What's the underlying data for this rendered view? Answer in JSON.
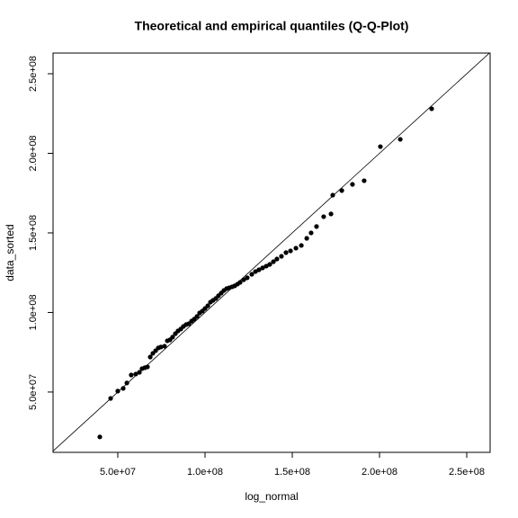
{
  "chart_data": {
    "type": "scatter",
    "title": "Theoretical and empirical quantiles (Q-Q-Plot)",
    "x_label": "log_normal",
    "y_label": "data_sorted",
    "color": "#000000",
    "identity_line": true,
    "xlim": [
      12900000,
      263400000
    ],
    "ylim": [
      12100000,
      263000000
    ],
    "xticks": [
      {
        "value": 50000000,
        "label": "5.0e+07"
      },
      {
        "value": 100000000,
        "label": "1.0e+08"
      },
      {
        "value": 150000000,
        "label": "1.5e+08"
      },
      {
        "value": 200000000,
        "label": "2.0e+08"
      },
      {
        "value": 250000000,
        "label": "2.5e+08"
      }
    ],
    "yticks": [
      {
        "value": 50000000,
        "label": "5.0e+07"
      },
      {
        "value": 100000000,
        "label": "1.0e+08"
      },
      {
        "value": 150000000,
        "label": "1.5e+08"
      },
      {
        "value": 200000000,
        "label": "2.0e+08"
      },
      {
        "value": 250000000,
        "label": "2.5e+08"
      }
    ],
    "x": [
      39700000,
      45900000,
      50000000,
      53100000,
      55200000,
      57700000,
      60300000,
      62400000,
      63900000,
      65500000,
      67000000,
      68600000,
      70100000,
      71700000,
      73200000,
      74700000,
      76800000,
      78400000,
      79900000,
      81400000,
      83000000,
      84500000,
      86100000,
      87600000,
      89200000,
      90700000,
      92300000,
      93800000,
      95400000,
      96900000,
      98500000,
      100000000,
      101600000,
      103100000,
      104600000,
      106200000,
      107700000,
      109300000,
      110800000,
      112400000,
      113900000,
      115500000,
      117000000,
      118600000,
      120100000,
      122200000,
      124200000,
      126800000,
      128900000,
      130900000,
      133000000,
      135100000,
      137100000,
      139200000,
      141200000,
      143800000,
      146400000,
      149000000,
      152100000,
      155200000,
      158300000,
      160800000,
      163900000,
      168000000,
      172200000,
      173200000,
      178400000,
      184500000,
      191200000,
      200500000,
      211900000,
      229900000
    ],
    "values": [
      21800000,
      46000000,
      50600000,
      52300000,
      55700000,
      60700000,
      61300000,
      62400000,
      64700000,
      65300000,
      65800000,
      72000000,
      74300000,
      76000000,
      77700000,
      78300000,
      78800000,
      82200000,
      82800000,
      84500000,
      86700000,
      88400000,
      89600000,
      91200000,
      92400000,
      92900000,
      94600000,
      95800000,
      97500000,
      99700000,
      100900000,
      102500000,
      104200000,
      106500000,
      107600000,
      108800000,
      110500000,
      112200000,
      113800000,
      115000000,
      115500000,
      116100000,
      116700000,
      117800000,
      118900000,
      120600000,
      121800000,
      124000000,
      125700000,
      126800000,
      128000000,
      129100000,
      130200000,
      131900000,
      133600000,
      135300000,
      137600000,
      138700000,
      140400000,
      142100000,
      146600000,
      150000000,
      154000000,
      160200000,
      161900000,
      173700000,
      176600000,
      180500000,
      182800000,
      204200000,
      208800000,
      228000000
    ]
  }
}
